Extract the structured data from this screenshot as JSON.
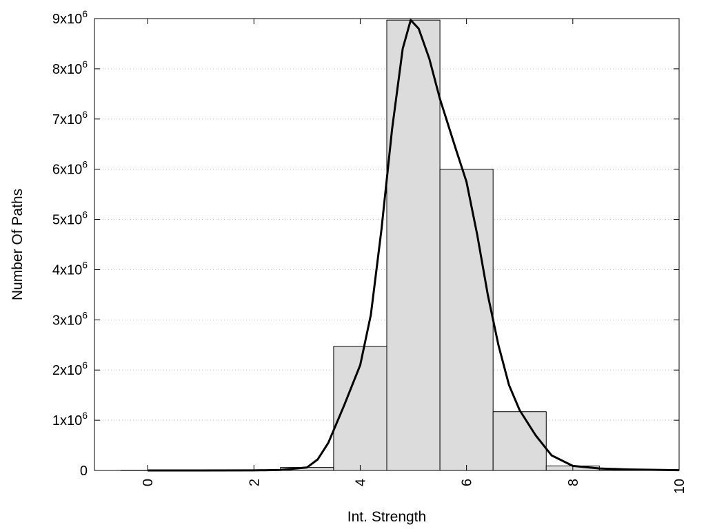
{
  "chart_data": {
    "type": "bar",
    "xlabel": "Int. Strength",
    "ylabel": "Number Of Paths",
    "xlim": [
      -1,
      10
    ],
    "ylim": [
      0,
      9000000
    ],
    "x_ticks": [
      0,
      2,
      4,
      6,
      8,
      10
    ],
    "y_ticks": [
      0,
      1000000,
      2000000,
      3000000,
      4000000,
      5000000,
      6000000,
      7000000,
      8000000,
      9000000
    ],
    "y_tick_labels": [
      {
        "base": "0",
        "exp": ""
      },
      {
        "base": "1x10",
        "exp": "6"
      },
      {
        "base": "2x10",
        "exp": "6"
      },
      {
        "base": "3x10",
        "exp": "6"
      },
      {
        "base": "4x10",
        "exp": "6"
      },
      {
        "base": "5x10",
        "exp": "6"
      },
      {
        "base": "6x10",
        "exp": "6"
      },
      {
        "base": "7x10",
        "exp": "6"
      },
      {
        "base": "8x10",
        "exp": "6"
      },
      {
        "base": "9x10",
        "exp": "6"
      }
    ],
    "grid": "horizontal-dotted",
    "bin_width": 1,
    "bars": [
      {
        "x": 0,
        "value": 5000
      },
      {
        "x": 1,
        "value": 5000
      },
      {
        "x": 2,
        "value": 5000
      },
      {
        "x": 3,
        "value": 60000
      },
      {
        "x": 4,
        "value": 2470000
      },
      {
        "x": 5,
        "value": 8970000
      },
      {
        "x": 6,
        "value": 6000000
      },
      {
        "x": 7,
        "value": 1170000
      },
      {
        "x": 8,
        "value": 90000
      },
      {
        "x": 9,
        "value": 5000
      }
    ],
    "curve": [
      {
        "x": 0,
        "y": 0
      },
      {
        "x": 1,
        "y": 0
      },
      {
        "x": 2,
        "y": 2000
      },
      {
        "x": 2.5,
        "y": 10000
      },
      {
        "x": 3,
        "y": 60000
      },
      {
        "x": 3.2,
        "y": 220000
      },
      {
        "x": 3.4,
        "y": 550000
      },
      {
        "x": 3.7,
        "y": 1300000
      },
      {
        "x": 4,
        "y": 2100000
      },
      {
        "x": 4.2,
        "y": 3100000
      },
      {
        "x": 4.4,
        "y": 4800000
      },
      {
        "x": 4.6,
        "y": 6800000
      },
      {
        "x": 4.8,
        "y": 8400000
      },
      {
        "x": 4.95,
        "y": 8970000
      },
      {
        "x": 5.1,
        "y": 8800000
      },
      {
        "x": 5.3,
        "y": 8200000
      },
      {
        "x": 5.5,
        "y": 7400000
      },
      {
        "x": 5.8,
        "y": 6400000
      },
      {
        "x": 6.0,
        "y": 5750000
      },
      {
        "x": 6.2,
        "y": 4700000
      },
      {
        "x": 6.4,
        "y": 3500000
      },
      {
        "x": 6.6,
        "y": 2500000
      },
      {
        "x": 6.8,
        "y": 1700000
      },
      {
        "x": 7.0,
        "y": 1200000
      },
      {
        "x": 7.3,
        "y": 700000
      },
      {
        "x": 7.6,
        "y": 300000
      },
      {
        "x": 8.0,
        "y": 90000
      },
      {
        "x": 8.5,
        "y": 40000
      },
      {
        "x": 9.0,
        "y": 20000
      },
      {
        "x": 10.0,
        "y": 5000
      }
    ]
  }
}
